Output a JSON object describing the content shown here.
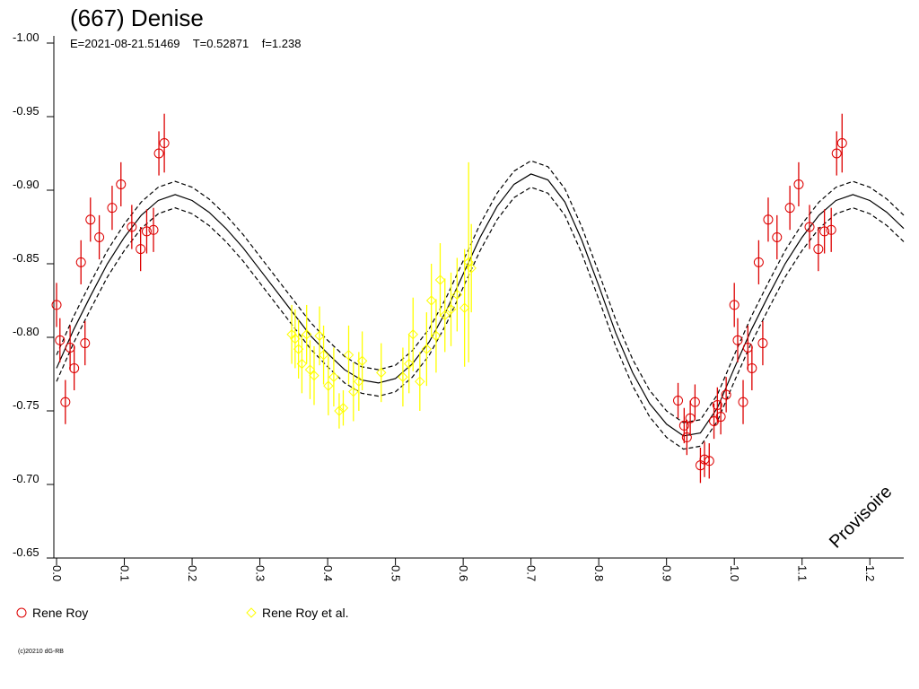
{
  "chart_data": {
    "type": "scatter",
    "title": "(667) Denise",
    "subtitle": "E=2021-08-21.51469    T=0.52871    f=1.238",
    "watermark": "Provisoire",
    "footer": "(c)20210 dG-RB",
    "xlim": [
      -0.004,
      1.25
    ],
    "ylim": [
      -0.65,
      -1.0
    ],
    "xticks": [
      {
        "value": 0,
        "label": "0.0"
      },
      0.1,
      0.2,
      0.3,
      0.4,
      0.5,
      0.6,
      0.7,
      0.8,
      0.9,
      {
        "value": 1,
        "label": "1.0"
      },
      1.1,
      1.2
    ],
    "yticks": [
      {
        "value": -1,
        "label": "-1.00"
      },
      -0.95,
      {
        "value": -0.9,
        "label": "-0.90"
      },
      -0.85,
      {
        "value": -0.8,
        "label": "-0.80"
      },
      -0.75,
      {
        "value": -0.7,
        "label": "-0.70"
      },
      -0.65
    ],
    "series": [
      {
        "name": "Rene Roy",
        "color": "#dd0000",
        "marker": "circle",
        "x": [
          0,
          0.005,
          0.013,
          0.02,
          0.026,
          0.036,
          0.042,
          0.05,
          0.063,
          0.082,
          0.095,
          0.111,
          0.124,
          0.133,
          0.143,
          0.151,
          0.159,
          0.917,
          0.926,
          0.93,
          0.935,
          0.942,
          0.95,
          0.956,
          0.963,
          0.97,
          0.975,
          0.98,
          0.988,
          1.0,
          1.005,
          1.013,
          1.02,
          1.026,
          1.036,
          1.042,
          1.05,
          1.063,
          1.082,
          1.095,
          1.111,
          1.124,
          1.133,
          1.143,
          1.151,
          1.159
        ],
        "values": [
          -0.822,
          -0.798,
          -0.756,
          -0.793,
          -0.779,
          -0.851,
          -0.796,
          -0.88,
          -0.868,
          -0.888,
          -0.904,
          -0.875,
          -0.86,
          -0.872,
          -0.873,
          -0.925,
          -0.932,
          -0.757,
          -0.74,
          -0.732,
          -0.745,
          -0.756,
          -0.713,
          -0.717,
          -0.716,
          -0.743,
          -0.754,
          -0.746,
          -0.761,
          -0.822,
          -0.798,
          -0.756,
          -0.793,
          -0.779,
          -0.851,
          -0.796,
          -0.88,
          -0.868,
          -0.888,
          -0.904,
          -0.875,
          -0.86,
          -0.872,
          -0.873,
          -0.925,
          -0.932
        ],
        "errors": [
          0.015,
          0.015,
          0.015,
          0.015,
          0.015,
          0.015,
          0.015,
          0.015,
          0.015,
          0.015,
          0.015,
          0.015,
          0.015,
          0.015,
          0.015,
          0.015,
          0.02,
          0.012,
          0.012,
          0.012,
          0.012,
          0.012,
          0.012,
          0.012,
          0.012,
          0.012,
          0.012,
          0.012,
          0.012,
          0.015,
          0.015,
          0.015,
          0.015,
          0.015,
          0.015,
          0.015,
          0.015,
          0.015,
          0.015,
          0.015,
          0.015,
          0.015,
          0.015,
          0.015,
          0.015,
          0.02
        ]
      },
      {
        "name": "Rene Roy et al.",
        "color": "#ffff00",
        "marker": "diamond",
        "x": [
          0.347,
          0.352,
          0.357,
          0.362,
          0.369,
          0.374,
          0.38,
          0.388,
          0.394,
          0.401,
          0.409,
          0.417,
          0.423,
          0.431,
          0.438,
          0.446,
          0.451,
          0.479,
          0.511,
          0.52,
          0.526,
          0.536,
          0.546,
          0.553,
          0.56,
          0.566,
          0.573,
          0.582,
          0.591,
          0.602,
          0.608,
          0.612
        ],
        "values": [
          -0.802,
          -0.799,
          -0.792,
          -0.782,
          -0.802,
          -0.778,
          -0.774,
          -0.801,
          -0.788,
          -0.767,
          -0.773,
          -0.75,
          -0.752,
          -0.788,
          -0.763,
          -0.77,
          -0.784,
          -0.776,
          -0.773,
          -0.782,
          -0.802,
          -0.77,
          -0.792,
          -0.825,
          -0.801,
          -0.839,
          -0.815,
          -0.819,
          -0.829,
          -0.82,
          -0.851,
          -0.847
        ],
        "errors": [
          0.02,
          0.02,
          0.02,
          0.02,
          0.02,
          0.02,
          0.02,
          0.02,
          0.02,
          0.02,
          0.02,
          0.012,
          0.012,
          0.02,
          0.02,
          0.02,
          0.02,
          0.02,
          0.02,
          0.02,
          0.025,
          0.02,
          0.025,
          0.025,
          0.025,
          0.025,
          0.025,
          0.025,
          0.025,
          0.04,
          0.068,
          0.03
        ]
      }
    ],
    "fit": {
      "color": "#000000",
      "x": [
        0,
        0.025,
        0.05,
        0.075,
        0.1,
        0.125,
        0.15,
        0.175,
        0.2,
        0.225,
        0.25,
        0.275,
        0.3,
        0.325,
        0.35,
        0.375,
        0.4,
        0.425,
        0.45,
        0.475,
        0.5,
        0.525,
        0.55,
        0.575,
        0.6,
        0.625,
        0.65,
        0.675,
        0.7,
        0.725,
        0.75,
        0.775,
        0.8,
        0.825,
        0.85,
        0.875,
        0.9,
        0.925,
        0.95,
        0.975,
        1.0,
        1.025,
        1.05,
        1.075,
        1.1,
        1.125,
        1.15,
        1.175,
        1.2,
        1.225,
        1.25
      ],
      "lines": [
        {
          "style": "solid",
          "values": [
            -0.779,
            -0.805,
            -0.828,
            -0.85,
            -0.868,
            -0.883,
            -0.893,
            -0.897,
            -0.893,
            -0.885,
            -0.874,
            -0.861,
            -0.846,
            -0.831,
            -0.816,
            -0.801,
            -0.789,
            -0.778,
            -0.771,
            -0.769,
            -0.772,
            -0.782,
            -0.797,
            -0.818,
            -0.843,
            -0.868,
            -0.889,
            -0.904,
            -0.911,
            -0.907,
            -0.892,
            -0.866,
            -0.835,
            -0.803,
            -0.776,
            -0.755,
            -0.741,
            -0.733,
            -0.735,
            -0.752,
            -0.779,
            -0.805,
            -0.828,
            -0.85,
            -0.868,
            -0.883,
            -0.893,
            -0.897,
            -0.893,
            -0.885,
            -0.874
          ]
        },
        {
          "style": "dashed",
          "values": [
            -0.788,
            -0.814,
            -0.837,
            -0.859,
            -0.877,
            -0.892,
            -0.902,
            -0.906,
            -0.902,
            -0.894,
            -0.883,
            -0.87,
            -0.855,
            -0.84,
            -0.825,
            -0.81,
            -0.798,
            -0.787,
            -0.78,
            -0.778,
            -0.781,
            -0.791,
            -0.806,
            -0.827,
            -0.852,
            -0.877,
            -0.898,
            -0.913,
            -0.92,
            -0.916,
            -0.901,
            -0.875,
            -0.844,
            -0.812,
            -0.785,
            -0.764,
            -0.75,
            -0.742,
            -0.744,
            -0.761,
            -0.788,
            -0.814,
            -0.837,
            -0.859,
            -0.877,
            -0.892,
            -0.902,
            -0.906,
            -0.902,
            -0.894,
            -0.883
          ]
        },
        {
          "style": "dashed",
          "values": [
            -0.77,
            -0.796,
            -0.819,
            -0.841,
            -0.859,
            -0.874,
            -0.884,
            -0.888,
            -0.884,
            -0.876,
            -0.865,
            -0.852,
            -0.837,
            -0.822,
            -0.807,
            -0.792,
            -0.78,
            -0.769,
            -0.762,
            -0.76,
            -0.763,
            -0.773,
            -0.788,
            -0.809,
            -0.834,
            -0.859,
            -0.88,
            -0.895,
            -0.902,
            -0.898,
            -0.883,
            -0.857,
            -0.826,
            -0.794,
            -0.767,
            -0.746,
            -0.732,
            -0.724,
            -0.726,
            -0.743,
            -0.77,
            -0.796,
            -0.819,
            -0.841,
            -0.859,
            -0.874,
            -0.884,
            -0.888,
            -0.884,
            -0.876,
            -0.865
          ]
        }
      ]
    }
  }
}
